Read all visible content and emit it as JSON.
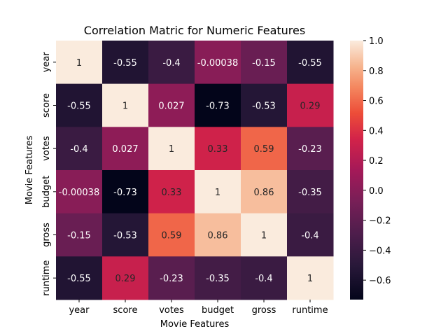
{
  "chart_data": {
    "type": "heatmap",
    "title": "Correlation Matric for Numeric Features",
    "xlabel": "Movie Features",
    "ylabel": "Movie Features",
    "row_labels": [
      "year",
      "score",
      "votes",
      "budget",
      "gross",
      "runtime"
    ],
    "col_labels": [
      "year",
      "score",
      "votes",
      "budget",
      "gross",
      "runtime"
    ],
    "values": [
      [
        1,
        -0.55,
        -0.4,
        -0.00038,
        -0.15,
        -0.55
      ],
      [
        -0.55,
        1,
        0.027,
        -0.73,
        -0.53,
        0.29
      ],
      [
        -0.4,
        0.027,
        1,
        0.33,
        0.59,
        -0.23
      ],
      [
        -0.00038,
        -0.73,
        0.33,
        1,
        0.86,
        -0.35
      ],
      [
        -0.15,
        -0.53,
        0.59,
        0.86,
        1,
        -0.4
      ],
      [
        -0.55,
        0.29,
        -0.23,
        -0.35,
        -0.4,
        1
      ]
    ],
    "value_labels": [
      [
        "1",
        "-0.55",
        "-0.4",
        "-0.00038",
        "-0.15",
        "-0.55"
      ],
      [
        "-0.55",
        "1",
        "0.027",
        "-0.73",
        "-0.53",
        "0.29"
      ],
      [
        "-0.4",
        "0.027",
        "1",
        "0.33",
        "0.59",
        "-0.23"
      ],
      [
        "-0.00038",
        "-0.73",
        "0.33",
        "1",
        "0.86",
        "-0.35"
      ],
      [
        "-0.15",
        "-0.53",
        "0.59",
        "0.86",
        "1",
        "-0.4"
      ],
      [
        "-0.55",
        "0.29",
        "-0.23",
        "-0.35",
        "-0.4",
        "1"
      ]
    ],
    "colorbar": {
      "range": [
        -0.73,
        1.0
      ],
      "ticks": [
        1.0,
        0.8,
        0.6,
        0.4,
        0.2,
        0.0,
        -0.2,
        -0.4,
        -0.6
      ],
      "tick_labels": [
        "1.0",
        "0.8",
        "0.6",
        "0.4",
        "0.2",
        "0.0",
        "−0.2",
        "−0.4",
        "−0.6"
      ],
      "colormap": "rocket",
      "low_color": "#03051a",
      "high_color": "#faebdd"
    }
  }
}
